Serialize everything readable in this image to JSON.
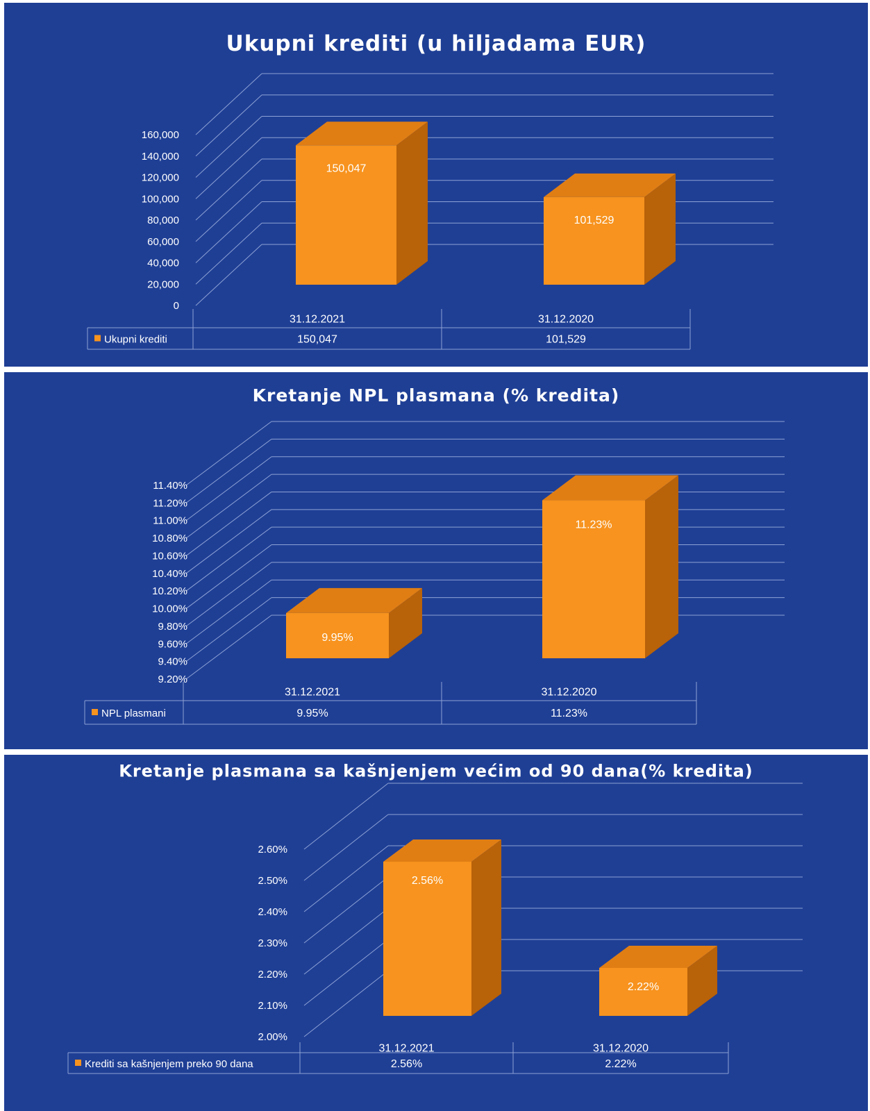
{
  "colors": {
    "background": "#1f3f95",
    "bar_front": "#f7931e",
    "bar_top": "#e07e14",
    "bar_side": "#b8620a",
    "grid": "#8ea2d4",
    "text": "#ffffff"
  },
  "chart_data": [
    {
      "type": "bar",
      "title": "Ukupni krediti (u hiljadama EUR)",
      "categories": [
        "31.12.2021",
        "31.12.2020"
      ],
      "series": [
        {
          "name": "Ukupni krediti",
          "values": [
            150047,
            101529
          ]
        }
      ],
      "data_labels": [
        "150,047",
        "101,529"
      ],
      "table_values": [
        "150,047",
        "101,529"
      ],
      "yticks": [
        "0",
        "20,000",
        "40,000",
        "60,000",
        "80,000",
        "100,000",
        "120,000",
        "140,000",
        "160,000"
      ],
      "ylim": [
        0,
        160000
      ],
      "grid": true,
      "legend": "data-table"
    },
    {
      "type": "bar",
      "title": "Kretanje NPL plasmana (% kredita)",
      "categories": [
        "31.12.2021",
        "31.12.2020"
      ],
      "series": [
        {
          "name": "NPL plasmani",
          "values": [
            9.95,
            11.23
          ]
        }
      ],
      "data_labels": [
        "9.95%",
        "11.23%"
      ],
      "table_values": [
        "9.95%",
        "11.23%"
      ],
      "yticks": [
        "9.20%",
        "9.40%",
        "9.60%",
        "9.80%",
        "10.00%",
        "10.20%",
        "10.40%",
        "10.60%",
        "10.80%",
        "11.00%",
        "11.20%",
        "11.40%"
      ],
      "ylim": [
        9.2,
        11.4
      ],
      "grid": true,
      "legend": "data-table"
    },
    {
      "type": "bar",
      "title": "Kretanje plasmana sa kašnjenjem većim od 90 dana(% kredita)",
      "categories": [
        "31.12.2021",
        "31.12.2020"
      ],
      "series": [
        {
          "name": "Krediti sa kašnjenjem preko 90 dana",
          "values": [
            2.56,
            2.22
          ]
        }
      ],
      "data_labels": [
        "2.56%",
        "2.22%"
      ],
      "table_values": [
        "2.56%",
        "2.22%"
      ],
      "yticks": [
        "2.00%",
        "2.10%",
        "2.20%",
        "2.30%",
        "2.40%",
        "2.50%",
        "2.60%"
      ],
      "ylim": [
        2.0,
        2.6
      ],
      "grid": true,
      "legend": "data-table"
    }
  ]
}
